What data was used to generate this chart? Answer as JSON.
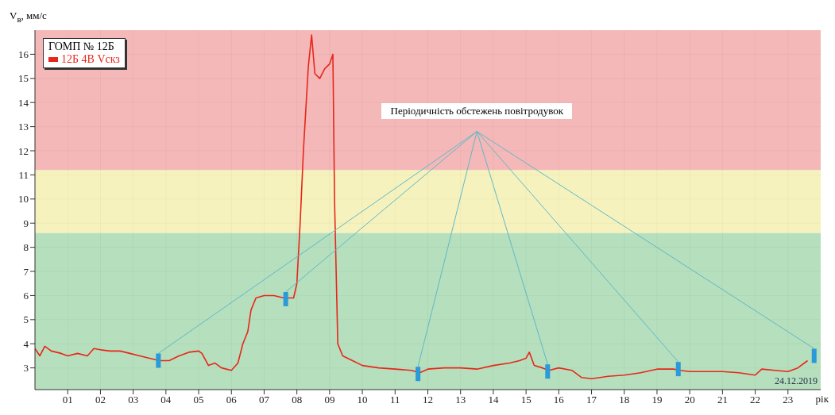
{
  "chart_data": {
    "type": "line",
    "ylabel": "V$_{в}$, мм/с",
    "xlabel": "рік",
    "legend_title": "ГОМП № 12Б",
    "legend": "top left",
    "grid": true,
    "xlim": [
      0,
      24
    ],
    "ylim": [
      2.1,
      17
    ],
    "xticks": [
      {
        "value": 1,
        "label": "01"
      },
      {
        "value": 2,
        "label": "02"
      },
      {
        "value": 3,
        "label": "03"
      },
      {
        "value": 4,
        "label": "04"
      },
      {
        "value": 5,
        "label": "05"
      },
      {
        "value": 6,
        "label": "06"
      },
      {
        "value": 7,
        "label": "07"
      },
      {
        "value": 8,
        "label": "08"
      },
      {
        "value": 9,
        "label": "09"
      },
      10,
      11,
      12,
      13,
      14,
      15,
      16,
      17,
      18,
      19,
      20,
      21,
      22,
      23
    ],
    "yticks": [
      3,
      4,
      5,
      6,
      7,
      8,
      9,
      10,
      11,
      12,
      13,
      14,
      15,
      16
    ],
    "bands": [
      {
        "axis": "y",
        "from": 2.1,
        "to": 8.6,
        "color": "#a9d9b2"
      },
      {
        "axis": "y",
        "from": 8.6,
        "to": 11.2,
        "color": "#f4f0b2"
      },
      {
        "axis": "y",
        "from": 11.2,
        "to": 17,
        "color": "#f2abab"
      }
    ],
    "annotations": [
      "Періодичність обстежень повітродувок",
      "24.12.2019"
    ],
    "series": [
      {
        "name": "12Б 4В Vскз",
        "type": "line",
        "color": "#e8261a",
        "x": [
          0,
          0.15,
          0.3,
          0.5,
          0.8,
          1.0,
          1.3,
          1.6,
          1.8,
          2.0,
          2.3,
          2.6,
          2.9,
          3.2,
          3.5,
          3.8,
          4.1,
          4.4,
          4.7,
          5.0,
          5.1,
          5.3,
          5.5,
          5.7,
          6.0,
          6.2,
          6.35,
          6.5,
          6.6,
          6.75,
          7.0,
          7.3,
          7.6,
          7.9,
          8.0,
          8.1,
          8.2,
          8.35,
          8.45,
          8.55,
          8.7,
          8.85,
          9.0,
          9.1,
          9.15,
          9.25,
          9.4,
          9.7,
          10.0,
          10.5,
          11.0,
          11.5,
          11.75,
          12.0,
          12.5,
          13.0,
          13.5,
          14.0,
          14.5,
          14.8,
          15.0,
          15.1,
          15.25,
          15.5,
          15.7,
          16.0,
          16.4,
          16.7,
          17.0,
          17.5,
          18.0,
          18.5,
          19.0,
          19.5,
          19.7,
          20.0,
          20.5,
          21.0,
          21.5,
          22.0,
          22.2,
          22.6,
          23.0,
          23.3,
          23.6
        ],
        "values": [
          3.8,
          3.5,
          3.9,
          3.7,
          3.6,
          3.5,
          3.6,
          3.5,
          3.8,
          3.75,
          3.7,
          3.7,
          3.6,
          3.5,
          3.4,
          3.3,
          3.3,
          3.5,
          3.65,
          3.7,
          3.6,
          3.1,
          3.2,
          3.0,
          2.9,
          3.2,
          4.0,
          4.5,
          5.4,
          5.9,
          6.0,
          6.0,
          5.9,
          5.9,
          6.5,
          9,
          12,
          15.5,
          16.8,
          15.2,
          15.0,
          15.4,
          15.6,
          16.0,
          10,
          4.0,
          3.5,
          3.3,
          3.1,
          3.0,
          2.95,
          2.9,
          2.8,
          2.95,
          3.0,
          3.0,
          2.95,
          3.1,
          3.2,
          3.3,
          3.4,
          3.65,
          3.1,
          3.0,
          2.9,
          3.0,
          2.9,
          2.6,
          2.55,
          2.65,
          2.7,
          2.8,
          2.95,
          2.95,
          2.9,
          2.85,
          2.85,
          2.85,
          2.8,
          2.7,
          2.95,
          2.9,
          2.85,
          3.0,
          3.3
        ]
      },
      {
        "color": "#5fb8c8",
        "x": [
          13.5,
          3.77
        ],
        "values": [
          12.8,
          3.6
        ]
      },
      {
        "color": "#5fb8c8",
        "x": [
          13.5,
          7.66
        ],
        "values": [
          12.8,
          6.15
        ]
      },
      {
        "color": "#5fb8c8",
        "x": [
          13.5,
          11.7
        ],
        "values": [
          12.8,
          3.05
        ]
      },
      {
        "color": "#5fb8c8",
        "x": [
          13.5,
          15.66
        ],
        "values": [
          12.8,
          3.15
        ]
      },
      {
        "color": "#5fb8c8",
        "x": [
          13.5,
          19.65
        ],
        "values": [
          12.8,
          3.25
        ]
      },
      {
        "color": "#5fb8c8",
        "x": [
          13.5,
          23.8
        ],
        "values": [
          12.8,
          3.8
        ]
      },
      {
        "type": "scatter",
        "marker": "square",
        "color": "#2a9ad8",
        "x": [
          3.77,
          7.66,
          11.7,
          15.66,
          19.65,
          23.8
        ],
        "values": [
          3.3,
          5.85,
          2.75,
          2.85,
          2.95,
          3.5
        ]
      }
    ]
  }
}
